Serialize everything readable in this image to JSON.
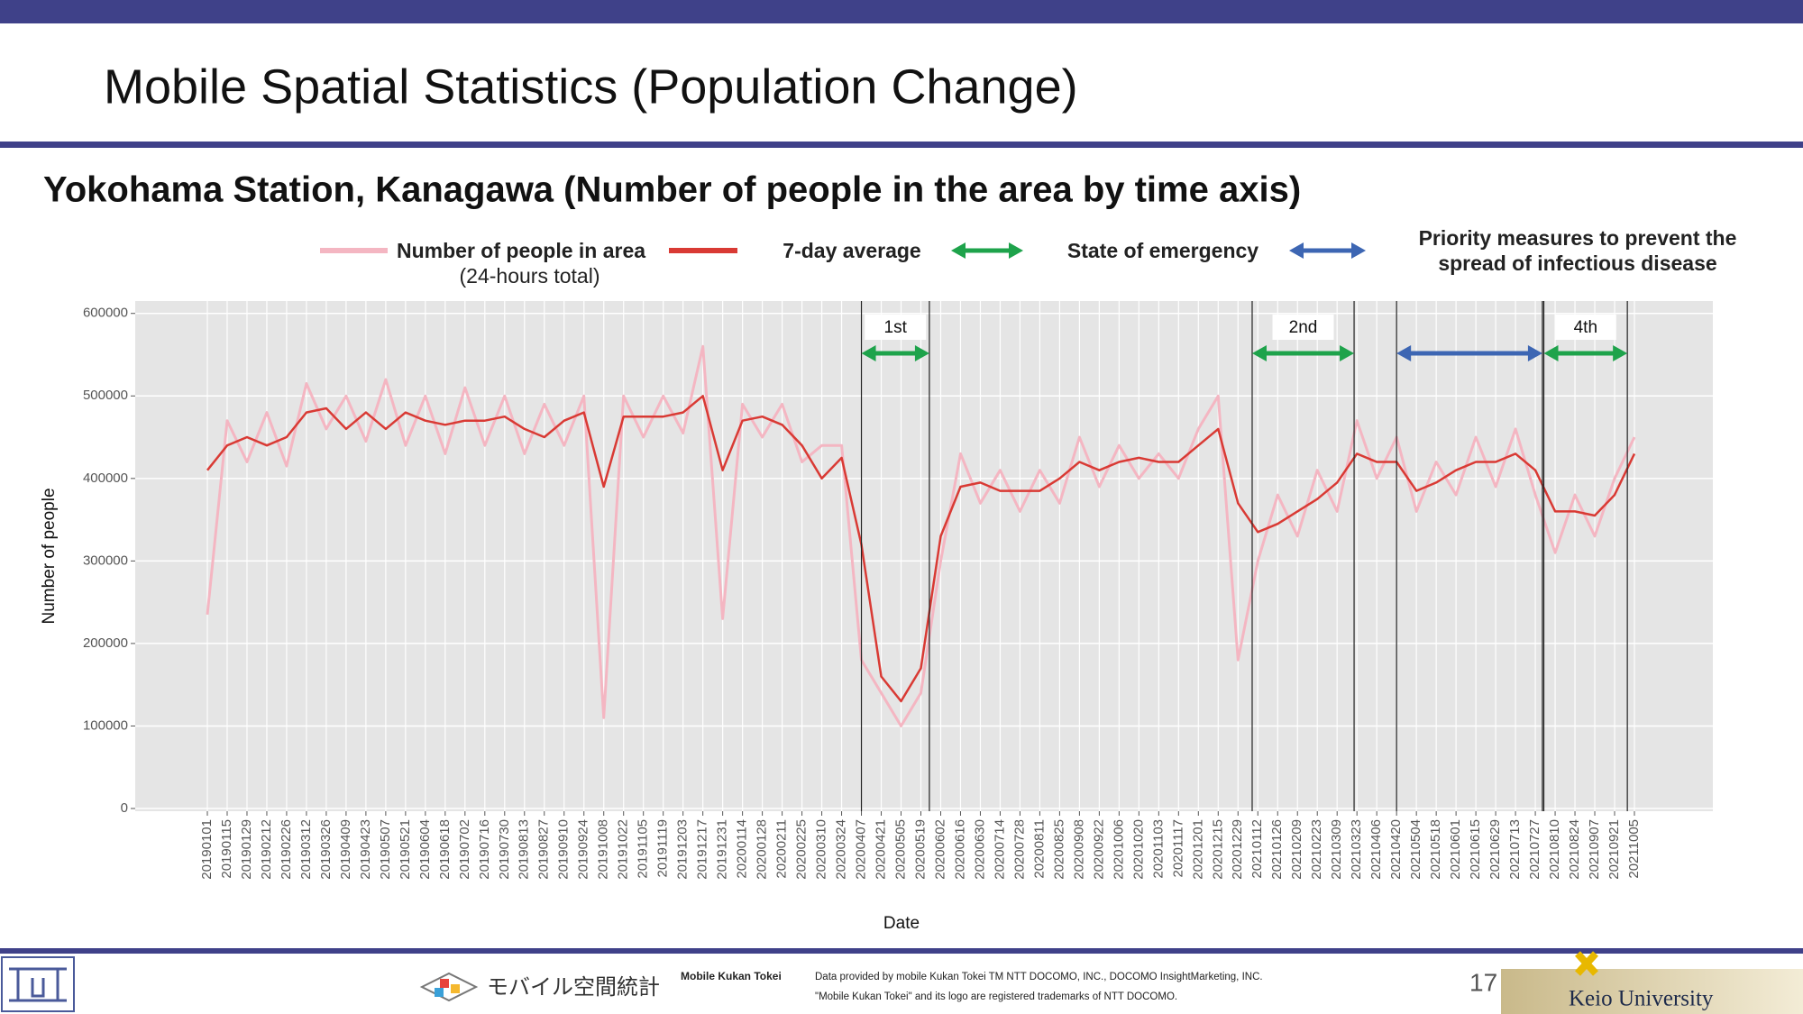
{
  "header": {
    "title": "Mobile Spatial Statistics (Population Change)"
  },
  "chart_data": {
    "type": "line",
    "title": "Yokohama Station, Kanagawa (Number of people in the area by time axis)",
    "x_label": "Date",
    "y_label": "Number of people",
    "x": [
      "20190101",
      "20190115",
      "20190129",
      "20190212",
      "20190226",
      "20190312",
      "20190326",
      "20190409",
      "20190423",
      "20190507",
      "20190521",
      "20190604",
      "20190618",
      "20190702",
      "20190716",
      "20190730",
      "20190813",
      "20190827",
      "20190910",
      "20190924",
      "20191008",
      "20191022",
      "20191105",
      "20191119",
      "20191203",
      "20191217",
      "20191231",
      "20200114",
      "20200128",
      "20200211",
      "20200225",
      "20200310",
      "20200324",
      "20200407",
      "20200421",
      "20200505",
      "20200519",
      "20200602",
      "20200616",
      "20200630",
      "20200714",
      "20200728",
      "20200811",
      "20200825",
      "20200908",
      "20200922",
      "20201006",
      "20201020",
      "20201103",
      "20201117",
      "20201201",
      "20201215",
      "20201229",
      "20210112",
      "20210126",
      "20210209",
      "20210223",
      "20210309",
      "20210323",
      "20210406",
      "20210420",
      "20210504",
      "20210518",
      "20210601",
      "20210615",
      "20210629",
      "20210713",
      "20210727",
      "20210810",
      "20210824",
      "20210907",
      "20210921",
      "20211005"
    ],
    "series": [
      {
        "name": "Number of people in area\n(24-hours total)",
        "color": "#f4b6c2",
        "width": 3,
        "values": [
          235000,
          470000,
          420000,
          480000,
          415000,
          515000,
          460000,
          500000,
          445000,
          520000,
          440000,
          500000,
          430000,
          510000,
          440000,
          500000,
          430000,
          490000,
          440000,
          500000,
          110000,
          500000,
          450000,
          500000,
          455000,
          560000,
          230000,
          490000,
          450000,
          490000,
          420000,
          440000,
          440000,
          180000,
          140000,
          100000,
          140000,
          300000,
          430000,
          370000,
          410000,
          360000,
          410000,
          370000,
          450000,
          390000,
          440000,
          400000,
          430000,
          400000,
          460000,
          500000,
          180000,
          300000,
          380000,
          330000,
          410000,
          360000,
          470000,
          400000,
          450000,
          360000,
          420000,
          380000,
          450000,
          390000,
          460000,
          380000,
          310000,
          380000,
          330000,
          400000,
          450000
        ]
      },
      {
        "name": "7-day average",
        "color": "#d93a34",
        "width": 2.5,
        "values": [
          410000,
          440000,
          450000,
          440000,
          450000,
          480000,
          485000,
          460000,
          480000,
          460000,
          480000,
          470000,
          465000,
          470000,
          470000,
          475000,
          460000,
          450000,
          470000,
          480000,
          390000,
          475000,
          475000,
          475000,
          480000,
          500000,
          410000,
          470000,
          475000,
          465000,
          440000,
          400000,
          425000,
          320000,
          160000,
          130000,
          170000,
          330000,
          390000,
          395000,
          385000,
          385000,
          385000,
          400000,
          420000,
          410000,
          420000,
          425000,
          420000,
          420000,
          440000,
          460000,
          370000,
          335000,
          345000,
          360000,
          375000,
          395000,
          430000,
          420000,
          420000,
          385000,
          395000,
          410000,
          420000,
          420000,
          430000,
          410000,
          360000,
          360000,
          355000,
          380000,
          430000
        ]
      }
    ],
    "periods": [
      {
        "label": "1st",
        "start": "20200407",
        "end": "20200525",
        "color": "#1ea34b"
      },
      {
        "label": "2nd",
        "start": "20210108",
        "end": "20210321",
        "color": "#1ea34b"
      },
      {
        "start": "20210420",
        "end": "20210801",
        "color": "#3d66b3"
      },
      {
        "label": "4th",
        "start": "20210802",
        "end": "20210930",
        "color": "#1ea34b"
      }
    ],
    "period_legend": [
      {
        "name": "State of emergency",
        "color": "#1ea34b"
      },
      {
        "name": "Priority measures to prevent the\nspread of infectious disease",
        "color": "#3d66b3"
      }
    ],
    "ylim": [
      0,
      615000
    ],
    "yticks": [
      0,
      100000,
      200000,
      300000,
      400000,
      500000,
      600000
    ],
    "grid": true
  },
  "footer": {
    "brand_jp": "モバイル空間統計",
    "brand_en": "Mobile Kukan Tokei",
    "credit_1": "Data provided by mobile Kukan Tokei TM NTT DOCOMO, INC., DOCOMO InsightMarketing, INC.",
    "credit_2": "\"Mobile Kukan Tokei\" and its logo are registered trademarks of NTT DOCOMO.",
    "page": "17",
    "university": "Keio University"
  }
}
